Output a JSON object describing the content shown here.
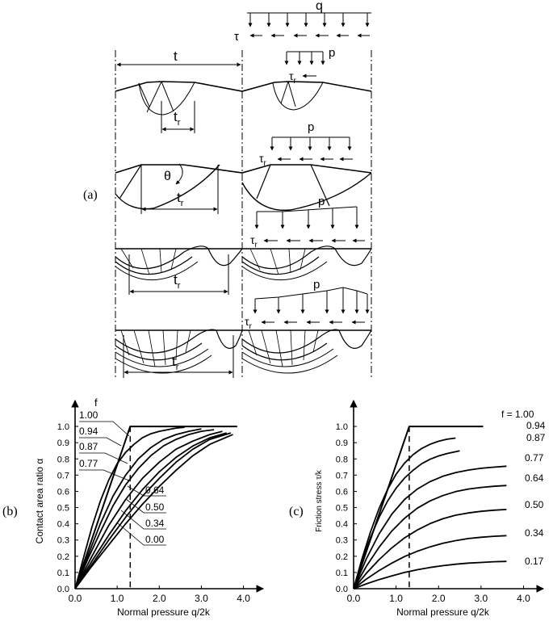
{
  "panel_a": {
    "label": "(a)",
    "t": "t",
    "tr": [
      "t",
      "t",
      "t",
      "t"
    ],
    "r_sub": "r",
    "theta": "θ",
    "q": "q",
    "tau": "τ",
    "tau_r": [
      "τ",
      "τ",
      "τ",
      "τ"
    ],
    "p": [
      "p",
      "p",
      "p",
      "p"
    ]
  },
  "panel_b": {
    "label": "(b)",
    "f_header": "f",
    "f_labels": [
      "1.00",
      "0.94",
      "0.87",
      "0.77",
      "0.64",
      "0.50",
      "0.34",
      "0.00"
    ]
  },
  "panel_c": {
    "label": "(c)",
    "f_labels": [
      "f = 1.00",
      "0.94",
      "0.87",
      "0.77",
      "0.64",
      "0.50",
      "0.34",
      "0.17"
    ]
  },
  "chart_data": [
    {
      "type": "line",
      "xlabel": "Normal pressure q/2k",
      "ylabel": "Contact area ratio α",
      "xlim": [
        0,
        4.2
      ],
      "ylim": [
        0,
        1.08
      ],
      "xticks": [
        "0.0",
        "1.0",
        "2.0",
        "3.0",
        "4.0"
      ],
      "yticks": [
        "0.0",
        "0.1",
        "0.2",
        "0.3",
        "0.4",
        "0.5",
        "0.6",
        "0.7",
        "0.8",
        "0.9",
        "1.0"
      ],
      "series": [
        {
          "name": "1.00",
          "x": [
            0,
            1.31,
            3.85
          ],
          "y": [
            0,
            1.0,
            1.0
          ]
        },
        {
          "name": "0.94",
          "x": [
            0,
            0.2,
            0.4,
            0.6,
            0.8,
            1.0,
            1.2,
            1.4,
            1.6,
            1.8,
            2.0,
            2.2,
            2.4,
            2.6
          ],
          "y": [
            0,
            0.19,
            0.38,
            0.54,
            0.67,
            0.77,
            0.84,
            0.89,
            0.93,
            0.955,
            0.97,
            0.98,
            0.99,
            0.995
          ]
        },
        {
          "name": "0.87",
          "x": [
            0,
            0.3,
            0.6,
            0.9,
            1.2,
            1.5,
            1.8,
            2.1,
            2.4,
            2.7,
            3.0
          ],
          "y": [
            0,
            0.2,
            0.4,
            0.57,
            0.7,
            0.8,
            0.87,
            0.92,
            0.95,
            0.97,
            0.985
          ]
        },
        {
          "name": "0.77",
          "x": [
            0,
            0.3,
            0.6,
            0.9,
            1.2,
            1.5,
            1.8,
            2.1,
            2.4,
            2.7,
            3.0,
            3.3
          ],
          "y": [
            0,
            0.18,
            0.35,
            0.51,
            0.64,
            0.74,
            0.82,
            0.88,
            0.92,
            0.95,
            0.97,
            0.98
          ]
        },
        {
          "name": "0.64",
          "x": [
            0,
            0.4,
            0.8,
            1.2,
            1.6,
            2.0,
            2.4,
            2.8,
            3.2,
            3.5
          ],
          "y": [
            0,
            0.2,
            0.39,
            0.55,
            0.68,
            0.78,
            0.86,
            0.91,
            0.95,
            0.97
          ]
        },
        {
          "name": "0.50",
          "x": [
            0,
            0.4,
            0.8,
            1.2,
            1.6,
            2.0,
            2.4,
            2.8,
            3.2,
            3.6
          ],
          "y": [
            0,
            0.17,
            0.33,
            0.48,
            0.61,
            0.72,
            0.81,
            0.88,
            0.93,
            0.96
          ]
        },
        {
          "name": "0.34",
          "x": [
            0,
            0.4,
            0.8,
            1.2,
            1.6,
            2.0,
            2.4,
            2.8,
            3.2,
            3.7
          ],
          "y": [
            0,
            0.15,
            0.3,
            0.44,
            0.57,
            0.68,
            0.78,
            0.86,
            0.92,
            0.96
          ]
        },
        {
          "name": "0.00",
          "x": [
            0,
            0.4,
            0.8,
            1.2,
            1.6,
            2.0,
            2.4,
            2.8,
            3.2,
            3.75
          ],
          "y": [
            0,
            0.14,
            0.27,
            0.4,
            0.52,
            0.63,
            0.73,
            0.82,
            0.89,
            0.95
          ]
        }
      ],
      "dashed_x": 1.31
    },
    {
      "type": "line",
      "xlabel": "Normal pressure q/2k",
      "ylabel": "Friction stress τ/k",
      "xlim": [
        0,
        4.2
      ],
      "ylim": [
        0,
        1.08
      ],
      "xticks": [
        "0.0",
        "1.0",
        "2.0",
        "3.0",
        "4.0"
      ],
      "yticks": [
        "0.0",
        "0.1",
        "0.2",
        "0.3",
        "0.4",
        "0.5",
        "0.6",
        "0.7",
        "0.8",
        "0.9",
        "1.0"
      ],
      "series": [
        {
          "name": "f = 1.00",
          "x": [
            0,
            1.31,
            3.05
          ],
          "y": [
            0,
            1.0,
            1.0
          ]
        },
        {
          "name": "0.94",
          "x": [
            0.0,
            0.2,
            0.4,
            0.6,
            0.8,
            1.0,
            1.2,
            1.4,
            1.6,
            1.8,
            2.0,
            2.2,
            2.4
          ],
          "y": [
            0.0,
            0.186,
            0.351,
            0.495,
            0.612,
            0.705,
            0.774,
            0.826,
            0.864,
            0.89,
            0.909,
            0.921,
            0.928
          ]
        },
        {
          "name": "0.87",
          "x": [
            0.0,
            0.2,
            0.4,
            0.6,
            0.8,
            1.0,
            1.2,
            1.4,
            1.6,
            1.8,
            2.0,
            2.2,
            2.5
          ],
          "y": [
            0.0,
            0.169,
            0.316,
            0.44,
            0.54,
            0.619,
            0.682,
            0.73,
            0.77,
            0.798,
            0.818,
            0.833,
            0.85
          ]
        },
        {
          "name": "0.77",
          "x": [
            0.0,
            0.3,
            0.6,
            0.9,
            1.2,
            1.5,
            1.8,
            2.1,
            2.4,
            2.7,
            3.0,
            3.3,
            3.6
          ],
          "y": [
            0.0,
            0.184,
            0.338,
            0.46,
            0.55,
            0.614,
            0.66,
            0.693,
            0.715,
            0.731,
            0.742,
            0.749,
            0.755
          ]
        },
        {
          "name": "0.64",
          "x": [
            0.0,
            0.3,
            0.6,
            0.9,
            1.2,
            1.5,
            1.8,
            2.1,
            2.4,
            2.7,
            3.0,
            3.3,
            3.6
          ],
          "y": [
            0.0,
            0.138,
            0.256,
            0.356,
            0.434,
            0.496,
            0.541,
            0.574,
            0.598,
            0.614,
            0.624,
            0.631,
            0.636
          ]
        },
        {
          "name": "0.50",
          "x": [
            0.0,
            0.3,
            0.6,
            0.9,
            1.2,
            1.5,
            1.8,
            2.1,
            2.4,
            2.7,
            3.0,
            3.3,
            3.6
          ],
          "y": [
            0.0,
            0.095,
            0.179,
            0.252,
            0.313,
            0.362,
            0.401,
            0.431,
            0.453,
            0.467,
            0.477,
            0.484,
            0.488
          ]
        },
        {
          "name": "0.34",
          "x": [
            0.0,
            0.3,
            0.6,
            0.9,
            1.2,
            1.5,
            1.8,
            2.1,
            2.4,
            2.7,
            3.0,
            3.3,
            3.6
          ],
          "y": [
            0.0,
            0.059,
            0.112,
            0.158,
            0.198,
            0.231,
            0.258,
            0.28,
            0.296,
            0.309,
            0.317,
            0.323,
            0.327
          ]
        },
        {
          "name": "0.17",
          "x": [
            0.0,
            0.3,
            0.6,
            0.9,
            1.2,
            1.5,
            1.8,
            2.1,
            2.4,
            2.7,
            3.0,
            3.3,
            3.6
          ],
          "y": [
            0.0,
            0.03,
            0.056,
            0.079,
            0.1,
            0.117,
            0.131,
            0.142,
            0.151,
            0.158,
            0.162,
            0.166,
            0.168
          ]
        }
      ],
      "dashed_x": 1.31
    }
  ]
}
